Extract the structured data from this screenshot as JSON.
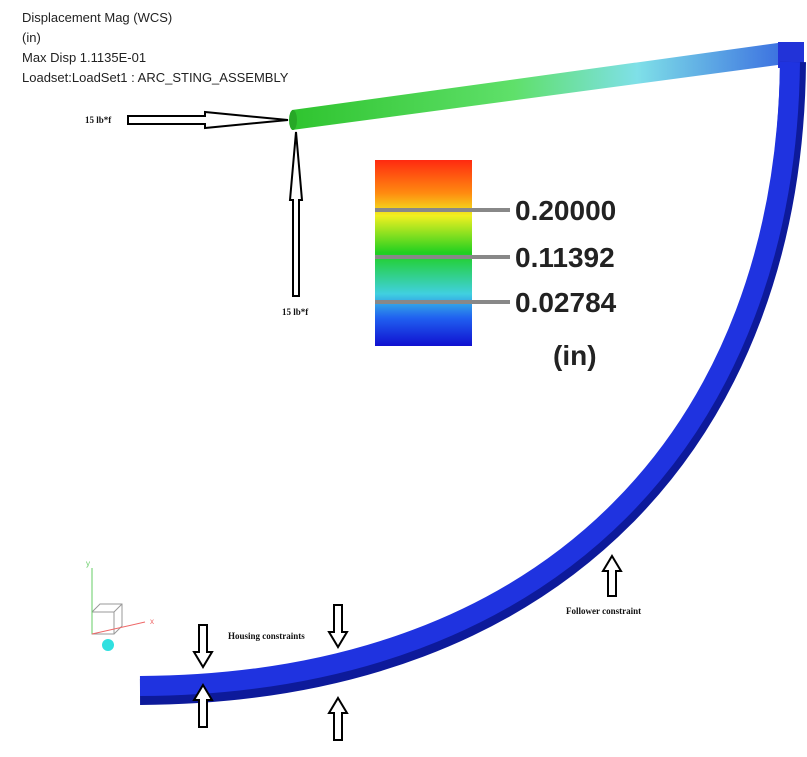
{
  "header": {
    "lines": [
      "Displacement Mag (WCS)",
      "(in)",
      "Max Disp  1.1135E-01",
      "Loadset:LoadSet1 :  ARC_STING_ASSEMBLY"
    ]
  },
  "loads": {
    "horizontal": "15 lb*f",
    "vertical": "15 lb*f"
  },
  "legend": {
    "levels": [
      "0.20000",
      "0.11392",
      "0.02784"
    ],
    "unit": "(in)"
  },
  "triad": {
    "y": "y",
    "x": "x"
  },
  "constraints": {
    "housing": "Housing constraints",
    "follower": "Follower constraint"
  }
}
